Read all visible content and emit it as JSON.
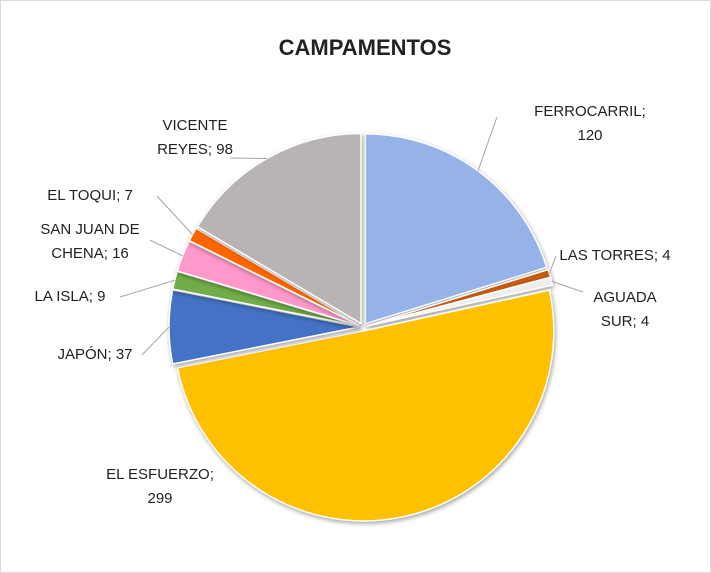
{
  "chart_data": {
    "type": "pie",
    "title": "CAMPAMENTOS",
    "categories": [
      "FERROCARRIL",
      "LAS TORRES",
      "AGUADA SUR",
      "EL ESFUERZO",
      "JAPÓN",
      "LA ISLA",
      "SAN JUAN DE CHENA",
      "EL TOQUI",
      "VICENTE REYES"
    ],
    "values": [
      120,
      4,
      4,
      299,
      37,
      9,
      16,
      7,
      98
    ],
    "value_labels": [
      "FERROCARRIL; 120",
      "LAS TORRES; 4",
      "AGUADA SUR; 4",
      "EL ESFUERZO; 299",
      "JAPÓN; 37",
      "LA ISLA; 9",
      "SAN JUAN DE CHENA; 16",
      "EL TOQUI; 7",
      "VICENTE REYES; 98"
    ],
    "colors": [
      "#95b3e8",
      "#c55a11",
      "#eeeeee",
      "#ffc000",
      "#4472c4",
      "#70ad47",
      "#ff99cc",
      "#ff6600",
      "#b8b4b4"
    ]
  }
}
